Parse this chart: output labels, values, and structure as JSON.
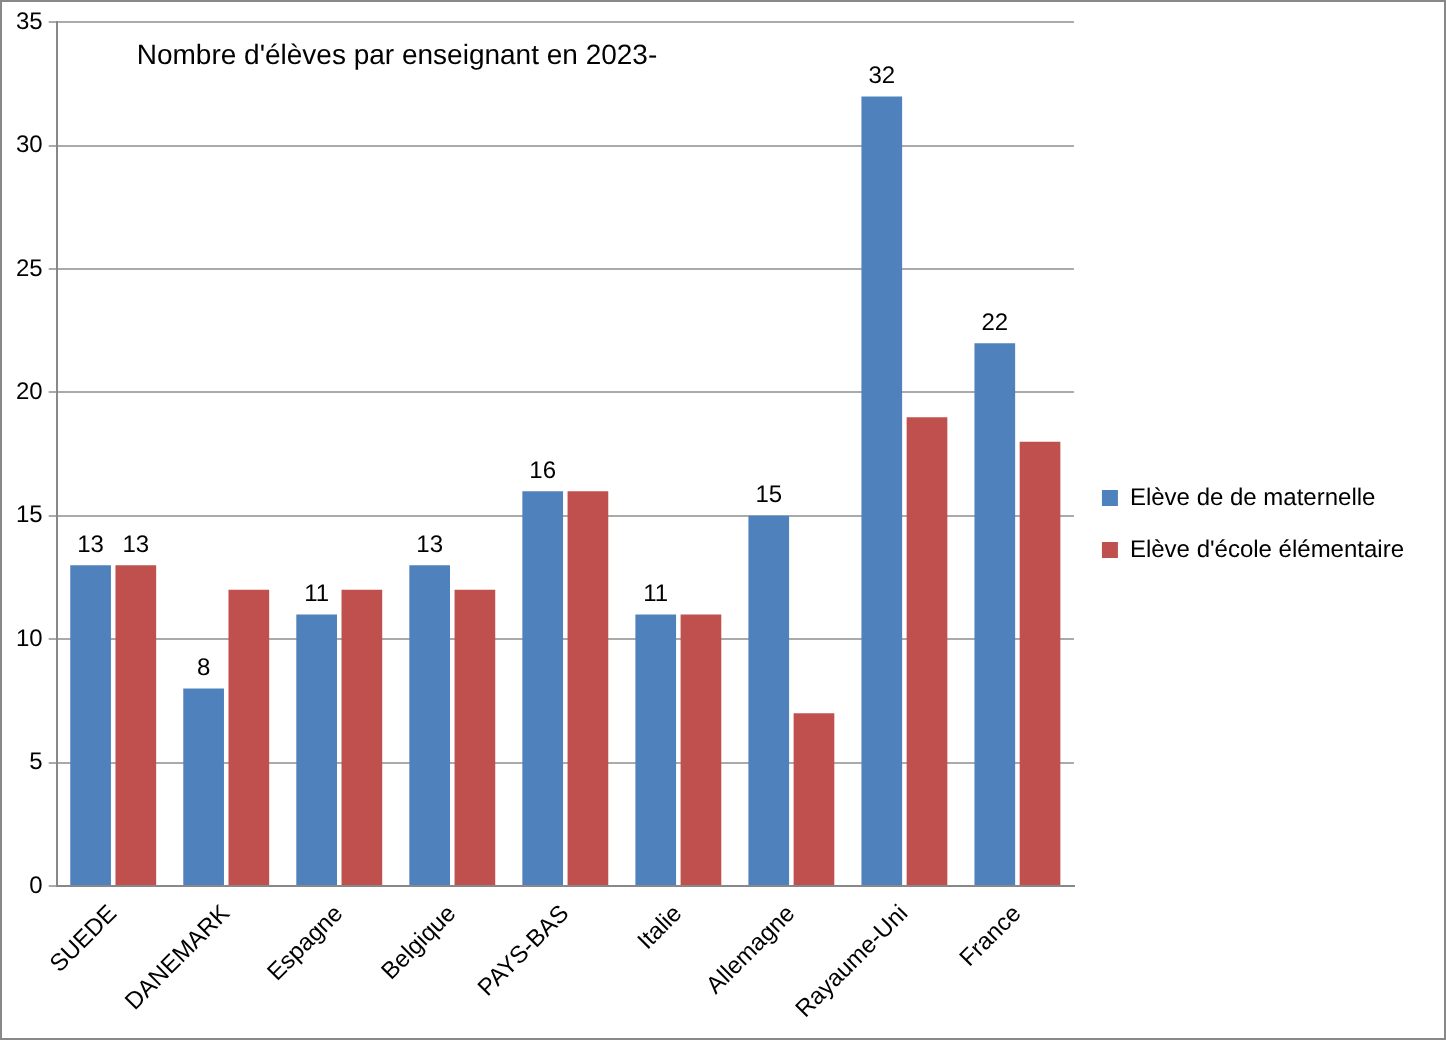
{
  "chart_data": {
    "type": "bar",
    "title": "Nombre d'élèves par enseignant en 2023-",
    "categories": [
      "SUEDE",
      "DANEMARK",
      "Espagne",
      "Belgique",
      "PAYS-BAS",
      "Italie",
      "Allemagne",
      "Rayaume-Uni",
      "France"
    ],
    "series": [
      {
        "name": "Elève de de maternelle",
        "color": "#4f81bd",
        "values": [
          13,
          8,
          11,
          13,
          16,
          11,
          15,
          32,
          22
        ],
        "value_labels": [
          "13",
          "8",
          "11",
          "13",
          "16",
          "11",
          "15",
          "32",
          "22"
        ]
      },
      {
        "name": "Elève d'école élémentaire",
        "color": "#c0504d",
        "values": [
          13,
          12,
          12,
          12,
          16,
          11,
          7,
          19,
          18
        ],
        "value_labels": [
          "13",
          null,
          null,
          null,
          null,
          null,
          null,
          null,
          null
        ]
      }
    ],
    "ylim": [
      0,
      35
    ],
    "yticks": [
      0,
      5,
      10,
      15,
      20,
      25,
      30,
      35
    ],
    "grid": "y",
    "legend": "right"
  }
}
